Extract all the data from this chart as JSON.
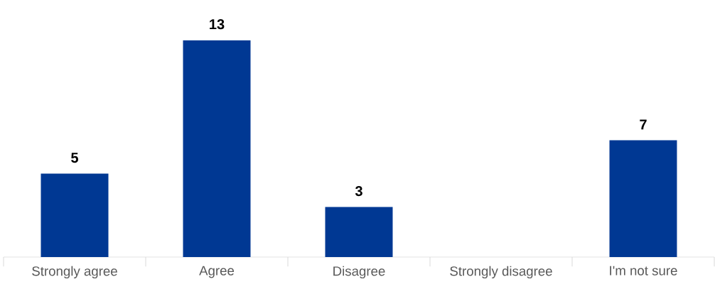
{
  "chart_data": {
    "type": "bar",
    "categories": [
      "Strongly agree",
      "Agree",
      "Disagree",
      "Strongly disagree",
      "I'm not sure"
    ],
    "values": [
      5,
      13,
      3,
      null,
      7
    ],
    "color": "#003893",
    "data_labels": true
  }
}
